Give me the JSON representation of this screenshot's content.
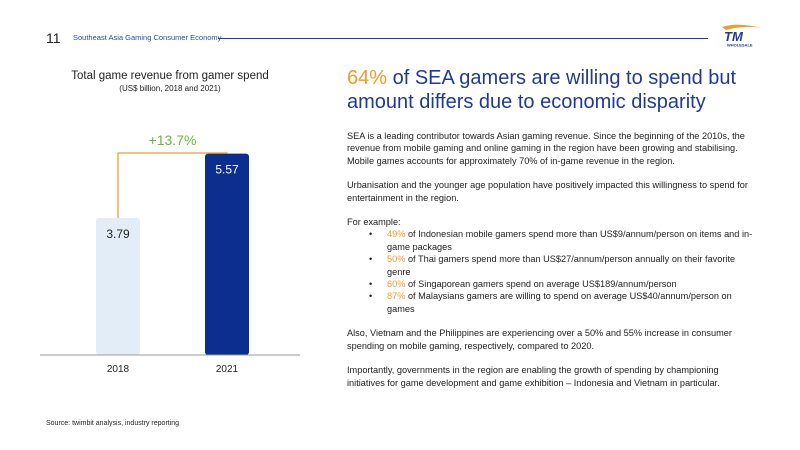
{
  "header": {
    "page_number": "11",
    "title": "Southeast Asia Gaming Consumer Economy",
    "logo_text": "TM",
    "logo_subtext": "WHOLESALE",
    "rule_color": "#1f3a93"
  },
  "chart": {
    "title": "Total game revenue from gamer spend",
    "subtitle": "(US$ billion, 2018 and 2021)",
    "growth_label": "+13.7%"
  },
  "chart_data": {
    "type": "bar",
    "title": "Total game revenue from gamer spend",
    "subtitle": "(US$ billion, 2018 and 2021)",
    "categories": [
      "2018",
      "2021"
    ],
    "values": [
      3.79,
      5.57
    ],
    "value_labels": [
      "3.79",
      "5.57"
    ],
    "bar_colors": [
      "#e3edf7",
      "#0b2e8f"
    ],
    "annotation": "+13.7%",
    "annotation_color": "#6cb33f",
    "connector_color": "#f39a2a",
    "ylim": [
      0,
      6.5
    ],
    "grid": false,
    "legend": "none"
  },
  "headline": {
    "accent": "64%",
    "rest": " of SEA gamers are willing to spend but amount differs due to economic disparity",
    "accent_color": "#f39a2a",
    "color": "#1f3a93"
  },
  "body": {
    "p1": "SEA is a leading contributor towards Asian gaming revenue. Since the beginning of the 2010s, the revenue from mobile gaming and online gaming in the region have been growing and stabilising. Mobile games accounts for approximately 70% of in-game revenue in the region.",
    "p2": "Urbanisation and the younger age population have positively impacted this willingness to spend for entertainment in the region.",
    "example_intro": "For example:",
    "bullets": [
      {
        "pct": "49%",
        "text": " of Indonesian mobile gamers spend more than US$9/annum/person on items and in-game packages"
      },
      {
        "pct": "50%",
        "text": " of Thai gamers spend more than US$27/annum/person annually on their favorite genre"
      },
      {
        "pct": "60%",
        "text": " of Singaporean gamers spend on average US$189/annum/person"
      },
      {
        "pct": "87%",
        "text": " of Malaysians gamers are willing to spend on average US$40/annum/person on games"
      }
    ],
    "bullet_symbol": "•",
    "p3": "Also, Vietnam and the Philippines are experiencing over a 50% and 55% increase in consumer spending on mobile gaming, respectively, compared to 2020.",
    "p4": "Importantly, governments in the region are enabling the growth of spending by championing initiatives for game development and game exhibition – Indonesia and Vietnam in particular."
  },
  "source": "Source: twimbit analysis, industry reporting"
}
